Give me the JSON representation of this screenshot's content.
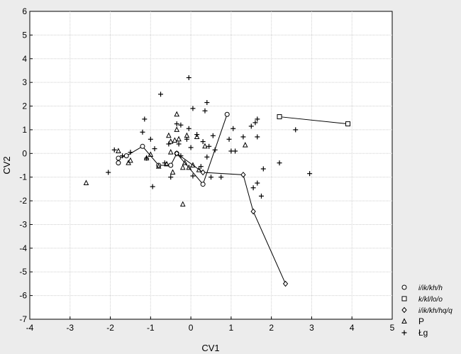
{
  "chart_data": {
    "type": "scatter",
    "xlabel": "CV1",
    "ylabel": "CV2",
    "xlim": [
      -4,
      5
    ],
    "ylim": [
      -7,
      6
    ],
    "xticks": [
      -4,
      -3,
      -2,
      -1,
      0,
      1,
      2,
      3,
      4,
      5
    ],
    "yticks": [
      -7,
      -6,
      -5,
      -4,
      -3,
      -2,
      -1,
      0,
      1,
      2,
      3,
      4,
      5,
      6
    ],
    "grid": true,
    "legend_position": "bottom-right",
    "series": [
      {
        "name": "i/ik/kh/h",
        "marker": "circle",
        "connected": true,
        "points": [
          [
            -1.8,
            -0.4
          ],
          [
            -1.8,
            -0.2
          ],
          [
            -1.6,
            -0.1
          ],
          [
            -1.2,
            0.3
          ],
          [
            -0.8,
            -0.5
          ],
          [
            -0.5,
            -0.5
          ],
          [
            -0.35,
            0.0
          ],
          [
            0.3,
            -1.3
          ],
          [
            0.9,
            1.65
          ]
        ]
      },
      {
        "name": "k/kl/lo/o",
        "marker": "square",
        "connected": true,
        "points": [
          [
            2.2,
            1.55
          ],
          [
            3.9,
            1.25
          ]
        ]
      },
      {
        "name": "i/ik/kh/hq/q",
        "marker": "diamond",
        "connected": true,
        "points": [
          [
            -0.35,
            0.0
          ],
          [
            0.3,
            -0.8
          ],
          [
            1.3,
            -0.9
          ],
          [
            1.55,
            -2.45
          ],
          [
            2.35,
            -5.5
          ]
        ]
      },
      {
        "name": "P",
        "marker": "triangle",
        "connected": false,
        "points": [
          [
            -2.6,
            -1.25
          ],
          [
            -1.8,
            0.1
          ],
          [
            -1.55,
            -0.4
          ],
          [
            -1.5,
            -0.3
          ],
          [
            -1.1,
            -0.2
          ],
          [
            -1.0,
            -0.05
          ],
          [
            -0.8,
            -0.55
          ],
          [
            -0.6,
            -0.45
          ],
          [
            -0.55,
            0.75
          ],
          [
            -0.5,
            0.5
          ],
          [
            -0.5,
            0.05
          ],
          [
            -0.45,
            -0.8
          ],
          [
            -0.4,
            0.55
          ],
          [
            -0.35,
            1.65
          ],
          [
            -0.35,
            1.0
          ],
          [
            -0.3,
            0.6
          ],
          [
            -0.2,
            -0.6
          ],
          [
            -0.15,
            -0.4
          ],
          [
            -0.1,
            0.75
          ],
          [
            -0.05,
            -0.6
          ],
          [
            0.05,
            -0.5
          ],
          [
            -0.2,
            -2.15
          ],
          [
            0.15,
            0.7
          ],
          [
            0.35,
            0.3
          ],
          [
            0.2,
            -0.7
          ],
          [
            1.35,
            0.35
          ]
        ]
      },
      {
        "name": "Łg",
        "marker": "plus",
        "connected": false,
        "points": [
          [
            -2.05,
            -0.8
          ],
          [
            -1.9,
            0.15
          ],
          [
            -1.7,
            -0.1
          ],
          [
            -1.5,
            0.05
          ],
          [
            -1.15,
            1.45
          ],
          [
            -1.2,
            0.9
          ],
          [
            -1.1,
            -0.2
          ],
          [
            -1.0,
            0.6
          ],
          [
            -0.9,
            0.2
          ],
          [
            -0.95,
            -1.4
          ],
          [
            -0.75,
            2.5
          ],
          [
            -0.65,
            -0.4
          ],
          [
            -0.55,
            0.4
          ],
          [
            -0.5,
            -1.0
          ],
          [
            -0.35,
            1.25
          ],
          [
            -0.25,
            1.2
          ],
          [
            -0.3,
            0.4
          ],
          [
            -0.25,
            -0.1
          ],
          [
            -0.1,
            0.6
          ],
          [
            -0.05,
            1.05
          ],
          [
            -0.05,
            3.2
          ],
          [
            0.05,
            1.9
          ],
          [
            0.0,
            0.25
          ],
          [
            0.05,
            -0.95
          ],
          [
            0.15,
            0.8
          ],
          [
            0.25,
            -0.55
          ],
          [
            0.3,
            0.5
          ],
          [
            0.35,
            1.8
          ],
          [
            0.4,
            2.15
          ],
          [
            0.4,
            -0.15
          ],
          [
            0.45,
            0.3
          ],
          [
            0.5,
            -1.0
          ],
          [
            0.55,
            0.75
          ],
          [
            0.6,
            0.15
          ],
          [
            0.75,
            -1.0
          ],
          [
            0.95,
            0.6
          ],
          [
            1.0,
            0.1
          ],
          [
            1.05,
            1.05
          ],
          [
            1.1,
            0.1
          ],
          [
            1.3,
            0.7
          ],
          [
            1.5,
            1.15
          ],
          [
            1.55,
            -1.45
          ],
          [
            1.6,
            1.3
          ],
          [
            1.65,
            1.45
          ],
          [
            1.65,
            0.7
          ],
          [
            1.65,
            -1.25
          ],
          [
            1.75,
            -1.8
          ],
          [
            1.8,
            -0.65
          ],
          [
            2.2,
            -0.4
          ],
          [
            2.6,
            1.0
          ],
          [
            2.95,
            -0.85
          ]
        ]
      }
    ]
  }
}
